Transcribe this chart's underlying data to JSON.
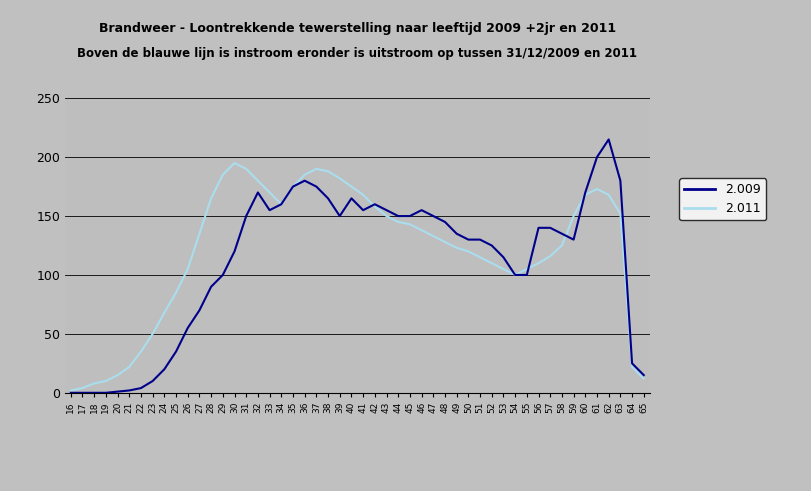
{
  "title1": "Brandweer - Loontrekkende tewerstelling naar leeftijd 2009 +2jr en 2011",
  "title2": "Boven de blauwe lijn is instroom eronder is uitstroom op tussen 31/12/2009 en 2011",
  "legend_labels": [
    "2.009",
    "2.011"
  ],
  "line1_color": "#00008B",
  "line2_color": "#AADDEE",
  "figure_bg": "#C0C0C0",
  "plot_bg": "#BEBEBE",
  "ylim": [
    0,
    250
  ],
  "yticks": [
    0,
    50,
    100,
    150,
    200,
    250
  ],
  "ages": [
    "16",
    "17",
    "18",
    "19",
    "20",
    "21",
    "22",
    "23",
    "24",
    "25",
    "26",
    "27",
    "28",
    "29",
    "30",
    "31",
    "32",
    "33",
    "34",
    "35",
    "36",
    "37",
    "38",
    "39",
    "40",
    "41",
    "42",
    "43",
    "44",
    "45",
    "46",
    "47",
    "48",
    "49",
    "50",
    "51",
    "52",
    "53",
    "54",
    "55",
    "56",
    "57",
    "58",
    "59",
    "60",
    "61",
    "62",
    "63",
    "64",
    "65"
  ],
  "series_2009": [
    0,
    0,
    0,
    0,
    1,
    2,
    4,
    10,
    20,
    35,
    55,
    70,
    90,
    100,
    120,
    150,
    170,
    155,
    160,
    175,
    180,
    175,
    165,
    150,
    165,
    155,
    160,
    155,
    150,
    150,
    155,
    150,
    145,
    135,
    130,
    130,
    125,
    115,
    100,
    100,
    140,
    140,
    135,
    130,
    170,
    200,
    215,
    180,
    25,
    15
  ],
  "series_2011": [
    2,
    4,
    8,
    10,
    15,
    22,
    35,
    50,
    68,
    85,
    105,
    135,
    165,
    185,
    195,
    190,
    180,
    170,
    160,
    175,
    185,
    190,
    188,
    182,
    175,
    168,
    158,
    150,
    145,
    143,
    138,
    133,
    128,
    123,
    120,
    115,
    110,
    105,
    100,
    105,
    110,
    116,
    125,
    150,
    168,
    173,
    168,
    152,
    22,
    12
  ]
}
